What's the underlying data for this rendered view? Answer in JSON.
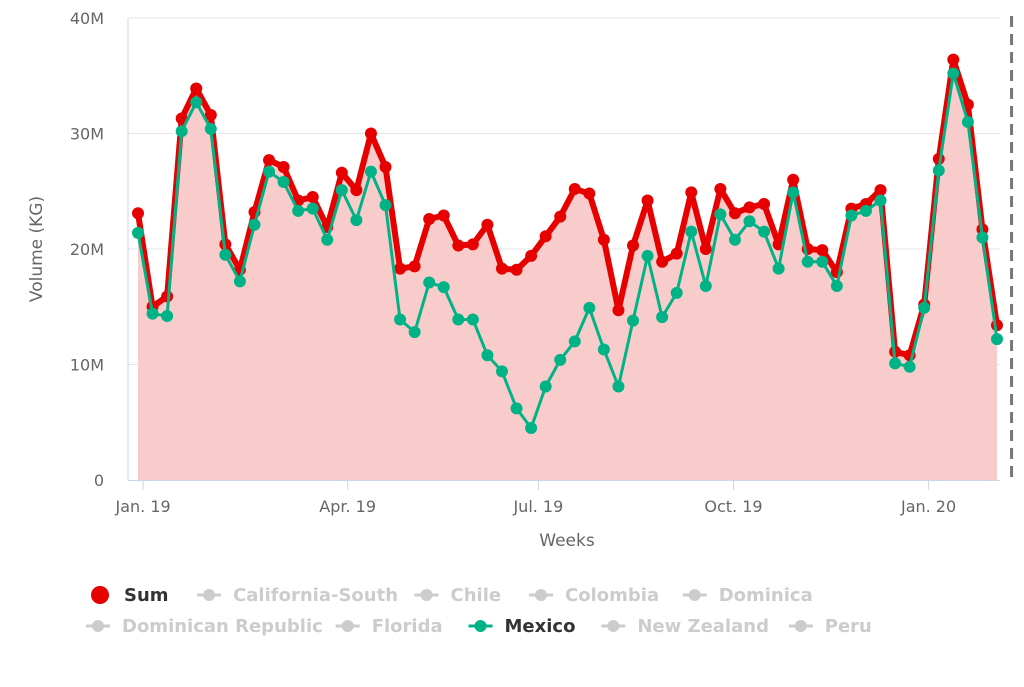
{
  "chart_data": {
    "type": "line",
    "xlabel": "Weeks",
    "ylabel": "Volume (KG)",
    "ylim": [
      0,
      40
    ],
    "y_unit": "M",
    "yticks": [
      {
        "v": 0,
        "label": "0"
      },
      {
        "v": 10,
        "label": "10M"
      },
      {
        "v": 20,
        "label": "20M"
      },
      {
        "v": 30,
        "label": "30M"
      },
      {
        "v": 40,
        "label": "40M"
      }
    ],
    "xticks": [
      {
        "i": 0.35,
        "label": "Jan. 19"
      },
      {
        "i": 14.4,
        "label": "Apr. 19"
      },
      {
        "i": 27.5,
        "label": "Jul. 19"
      },
      {
        "i": 40.9,
        "label": "Oct. 19"
      },
      {
        "i": 54.3,
        "label": "Jan. 20"
      }
    ],
    "grid": true,
    "legend_position": "bottom",
    "current_week_marker_index": 60,
    "series": [
      {
        "name": "Sum",
        "color": "#e60000",
        "fill": "#f9cccc",
        "visible": true,
        "values": [
          23.1,
          15.0,
          15.9,
          31.3,
          33.9,
          31.6,
          20.4,
          18.2,
          23.2,
          27.7,
          27.1,
          24.2,
          24.5,
          21.9,
          26.6,
          25.1,
          30.0,
          27.1,
          18.3,
          18.5,
          22.6,
          22.9,
          20.3,
          20.4,
          22.1,
          18.3,
          18.2,
          19.4,
          21.1,
          22.8,
          25.2,
          24.8,
          20.8,
          14.7,
          20.3,
          24.2,
          18.9,
          19.6,
          24.9,
          20.0,
          25.2,
          23.1,
          23.6,
          23.9,
          20.4,
          26.0,
          20.0,
          19.9,
          18.0,
          23.5,
          23.9,
          25.1,
          11.1,
          10.8,
          15.2,
          27.8,
          36.4,
          32.5,
          21.7,
          13.4
        ]
      },
      {
        "name": "California-South",
        "color": "#cccccc",
        "visible": false
      },
      {
        "name": "Chile",
        "color": "#cccccc",
        "visible": false
      },
      {
        "name": "Colombia",
        "color": "#cccccc",
        "visible": false
      },
      {
        "name": "Dominica",
        "color": "#cccccc",
        "visible": false
      },
      {
        "name": "Dominican Republic",
        "color": "#cccccc",
        "visible": false
      },
      {
        "name": "Florida",
        "color": "#cccccc",
        "visible": false
      },
      {
        "name": "Mexico",
        "color": "#00b386",
        "visible": true,
        "values": [
          21.4,
          14.4,
          14.2,
          30.2,
          32.7,
          30.4,
          19.5,
          17.2,
          22.1,
          26.7,
          25.8,
          23.3,
          23.5,
          20.8,
          25.1,
          22.5,
          26.7,
          23.8,
          13.9,
          12.8,
          17.1,
          16.7,
          13.9,
          13.9,
          10.8,
          9.4,
          6.2,
          4.5,
          8.1,
          10.4,
          12.0,
          14.9,
          11.3,
          8.1,
          13.8,
          19.4,
          14.1,
          16.2,
          21.5,
          16.8,
          23.0,
          20.8,
          22.4,
          21.5,
          18.3,
          24.9,
          18.9,
          18.9,
          16.8,
          22.9,
          23.3,
          24.2,
          10.1,
          9.8,
          14.9,
          26.8,
          35.2,
          31.0,
          21.0,
          12.2
        ]
      },
      {
        "name": "New Zealand",
        "color": "#cccccc",
        "visible": false
      },
      {
        "name": "Peru",
        "color": "#cccccc",
        "visible": false
      }
    ]
  }
}
